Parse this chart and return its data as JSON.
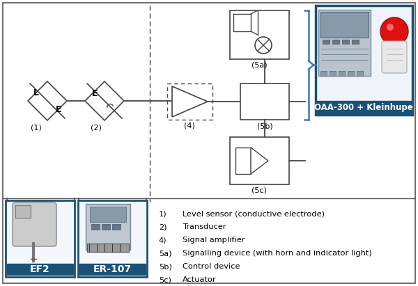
{
  "bg_color": "#ffffff",
  "border_color": "#555555",
  "blue_label_bg": "#1a5276",
  "blue_label_text": "#ffffff",
  "symbol_line_color": "#444444",
  "dashed_line_color": "#444444",
  "oaa_border_color": "#1a5276",
  "legend_items": [
    [
      "1)",
      "Level sensor (conductive electrode)"
    ],
    [
      "2)",
      "Transducer"
    ],
    [
      "4)",
      "Signal amplifier"
    ],
    [
      "5a)",
      "Signalling device (with horn and indicator light)"
    ],
    [
      "5b)",
      "Control device"
    ],
    [
      "5c)",
      "Actuator"
    ]
  ],
  "labels": {
    "ef2": "EF2",
    "er107": "ER-107",
    "oaa": "OAA-300 + Kleinhupe"
  },
  "symbol_labels": {
    "s1": "(1)",
    "s2": "(2)",
    "s4": "(4)",
    "s5a": "(5a)",
    "s5b": "(5b)",
    "s5c": "(5c)"
  }
}
